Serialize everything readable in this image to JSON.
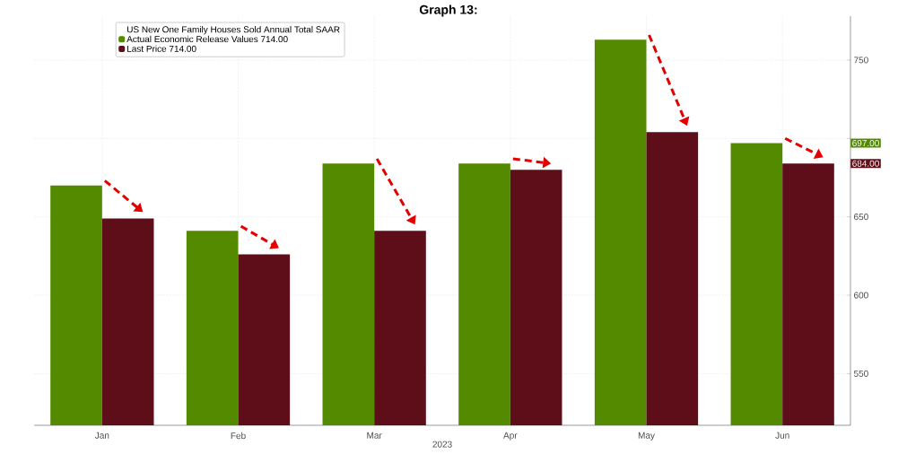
{
  "chart_data": {
    "type": "bar",
    "title": "Graph 13:",
    "legend_title": "US New One Family Houses Sold Annual Total SAAR",
    "xlabel": "2023",
    "categories": [
      "Jan",
      "Feb",
      "Mar",
      "Apr",
      "May",
      "Jun"
    ],
    "series": [
      {
        "name": "Actual Economic Release Values 714.00",
        "color": "#538a00",
        "values": [
          670,
          641,
          684,
          684,
          763,
          697
        ]
      },
      {
        "name": "Last Price 714.00",
        "color": "#5e0e18",
        "values": [
          649,
          626,
          641,
          680,
          704,
          684
        ]
      }
    ],
    "annotations": [
      "697.00",
      "684.00"
    ],
    "ylim": [
      517,
      778
    ],
    "yticks": [
      550,
      600,
      650,
      {
        "value": 700,
        "label": null
      },
      750
    ],
    "grid": true,
    "legend": "top left"
  }
}
